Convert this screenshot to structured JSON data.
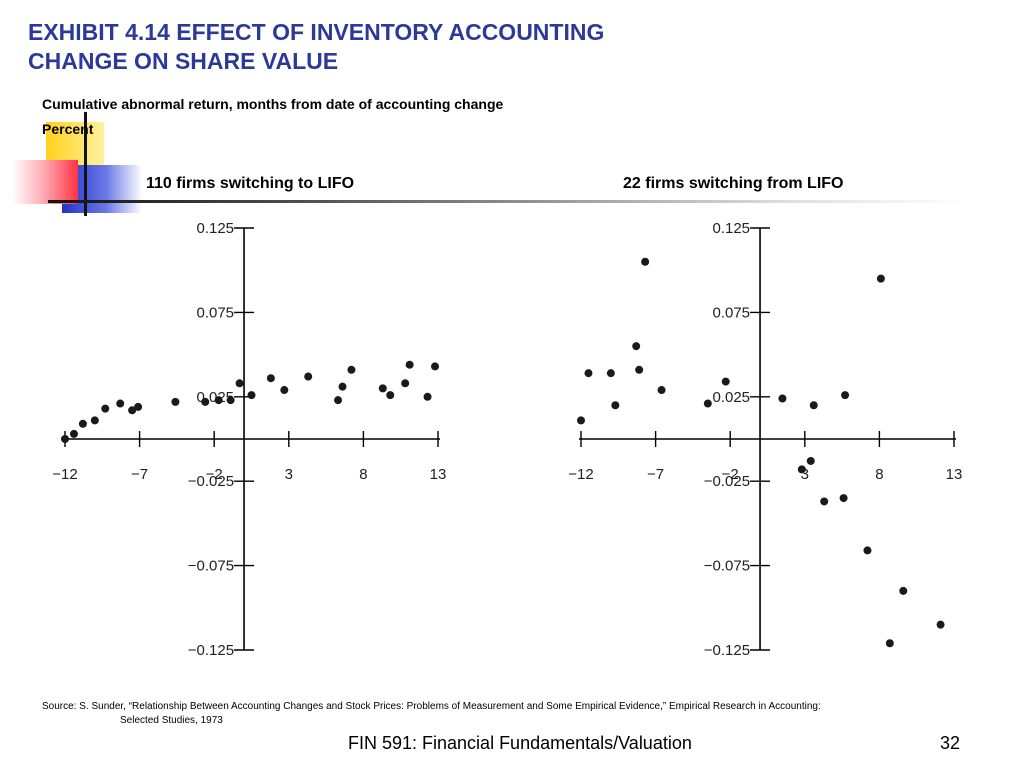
{
  "slide": {
    "title_line1": "EXHIBIT 4.14 EFFECT OF INVENTORY ACCOUNTING",
    "title_line2": "CHANGE ON SHARE VALUE",
    "subtitle": "Cumulative abnormal return, months from date of accounting change",
    "unit_label": "Percent",
    "source_line1": "Source: S. Sunder, “Relationship Between Accounting Changes and Stock Prices:  Problems of Measurement and Some Empirical Evidence,” Empirical Research in Accounting:",
    "source_line2": "Selected Studies, 1973",
    "footer_text": "FIN 591: Financial Fundamentals/Valuation",
    "page_number": "32",
    "colors": {
      "title": "#2b3a9a",
      "deco_yellow": "#ffd21a",
      "deco_blue": "#2233cc",
      "deco_red": "#ff3344"
    }
  },
  "chart_data": [
    {
      "type": "scatter",
      "title": "110 firms switching to LIFO",
      "xlabel": "",
      "ylabel": "",
      "xlim": [
        -12,
        13
      ],
      "ylim": [
        -0.125,
        0.125
      ],
      "x_ticks": [
        -12,
        -7,
        -2,
        3,
        8,
        13
      ],
      "x_tick_labels": [
        "−12",
        "−7",
        "−2",
        "3",
        "8",
        "13"
      ],
      "y_ticks": [
        0.125,
        0.075,
        0.025,
        -0.025,
        -0.075,
        -0.125
      ],
      "y_tick_labels": [
        "0.125",
        "0.075",
        "0.025",
        "−0.025",
        "−0.075",
        "−0.125"
      ],
      "grid": false,
      "points": [
        {
          "x": -12,
          "y": 0.0
        },
        {
          "x": -11.4,
          "y": 0.003
        },
        {
          "x": -10.8,
          "y": 0.009
        },
        {
          "x": -10,
          "y": 0.011
        },
        {
          "x": -9.3,
          "y": 0.018
        },
        {
          "x": -8.3,
          "y": 0.021
        },
        {
          "x": -7.5,
          "y": 0.017
        },
        {
          "x": -7.1,
          "y": 0.019
        },
        {
          "x": -4.6,
          "y": 0.022
        },
        {
          "x": -2.6,
          "y": 0.022
        },
        {
          "x": -1.7,
          "y": 0.023
        },
        {
          "x": -0.9,
          "y": 0.023
        },
        {
          "x": -0.3,
          "y": 0.033
        },
        {
          "x": 0.5,
          "y": 0.026
        },
        {
          "x": 1.8,
          "y": 0.036
        },
        {
          "x": 2.7,
          "y": 0.029
        },
        {
          "x": 4.3,
          "y": 0.037
        },
        {
          "x": 6.3,
          "y": 0.023
        },
        {
          "x": 6.6,
          "y": 0.031
        },
        {
          "x": 7.2,
          "y": 0.041
        },
        {
          "x": 9.3,
          "y": 0.03
        },
        {
          "x": 9.8,
          "y": 0.026
        },
        {
          "x": 10.8,
          "y": 0.033
        },
        {
          "x": 11.1,
          "y": 0.044
        },
        {
          "x": 12.3,
          "y": 0.025
        },
        {
          "x": 12.8,
          "y": 0.043
        }
      ]
    },
    {
      "type": "scatter",
      "title": "22 firms switching from LIFO",
      "xlabel": "",
      "ylabel": "",
      "xlim": [
        -12,
        13
      ],
      "ylim": [
        -0.125,
        0.125
      ],
      "x_ticks": [
        -12,
        -7,
        -2,
        3,
        8,
        13
      ],
      "x_tick_labels": [
        "−12",
        "−7",
        "−2",
        "3",
        "8",
        "13"
      ],
      "y_ticks": [
        0.125,
        0.075,
        0.025,
        -0.025,
        -0.075,
        -0.125
      ],
      "y_tick_labels": [
        "0.125",
        "0.075",
        "0.025",
        "−0.025",
        "−0.075",
        "−0.125"
      ],
      "grid": false,
      "points": [
        {
          "x": -12,
          "y": 0.011
        },
        {
          "x": -11.5,
          "y": 0.039
        },
        {
          "x": -10,
          "y": 0.039
        },
        {
          "x": -9.7,
          "y": 0.02
        },
        {
          "x": -8.3,
          "y": 0.055
        },
        {
          "x": -8.1,
          "y": 0.041
        },
        {
          "x": -7.7,
          "y": 0.105
        },
        {
          "x": -6.6,
          "y": 0.029
        },
        {
          "x": -3.5,
          "y": 0.021
        },
        {
          "x": -2.3,
          "y": 0.034
        },
        {
          "x": 1.5,
          "y": 0.024
        },
        {
          "x": 2.8,
          "y": -0.018
        },
        {
          "x": 3.4,
          "y": -0.013
        },
        {
          "x": 3.6,
          "y": 0.02
        },
        {
          "x": 4.3,
          "y": -0.037
        },
        {
          "x": 5.7,
          "y": 0.026
        },
        {
          "x": 5.6,
          "y": -0.035
        },
        {
          "x": 7.2,
          "y": -0.066
        },
        {
          "x": 8.1,
          "y": 0.095
        },
        {
          "x": 8.7,
          "y": -0.121
        },
        {
          "x": 9.6,
          "y": -0.09
        },
        {
          "x": 12.1,
          "y": -0.11
        }
      ]
    }
  ]
}
